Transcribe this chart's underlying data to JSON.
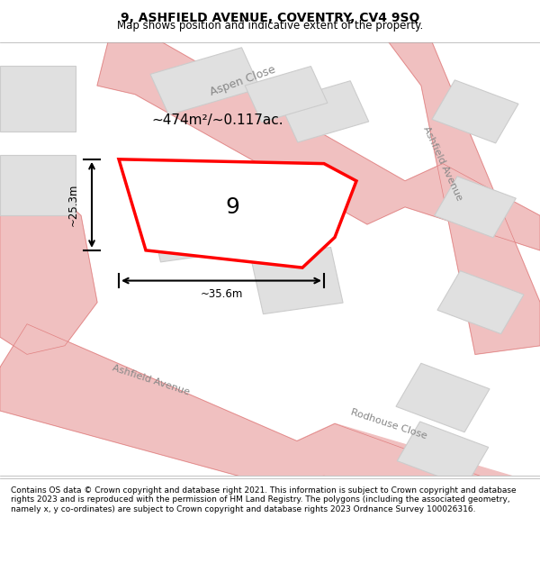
{
  "title": "9, ASHFIELD AVENUE, COVENTRY, CV4 9SQ",
  "subtitle": "Map shows position and indicative extent of the property.",
  "footer": "Contains OS data © Crown copyright and database right 2021. This information is subject to Crown copyright and database rights 2023 and is reproduced with the permission of HM Land Registry. The polygons (including the associated geometry, namely x, y co-ordinates) are subject to Crown copyright and database rights 2023 Ordnance Survey 100026316.",
  "bg_color": "#ffffff",
  "map_bg": "#f5f5f5",
  "road_color": "#f0c0c0",
  "road_edge_color": "#e08080",
  "building_color": "#e0e0e0",
  "building_edge": "#cccccc",
  "highlight_color": "#ff0000",
  "highlight_fill": "none",
  "area_text": "~474m²/~0.117ac.",
  "label_9": "9",
  "dim_width": "~35.6m",
  "dim_height": "~25.3m",
  "street_labels": [
    "Aspen Close",
    "Ashfield Avenue",
    "Ashfield Avenue",
    "Rodhouse Close"
  ],
  "street_label_angles": [
    25,
    -65,
    -65,
    25
  ],
  "figsize": [
    6.0,
    6.25
  ],
  "dpi": 100
}
